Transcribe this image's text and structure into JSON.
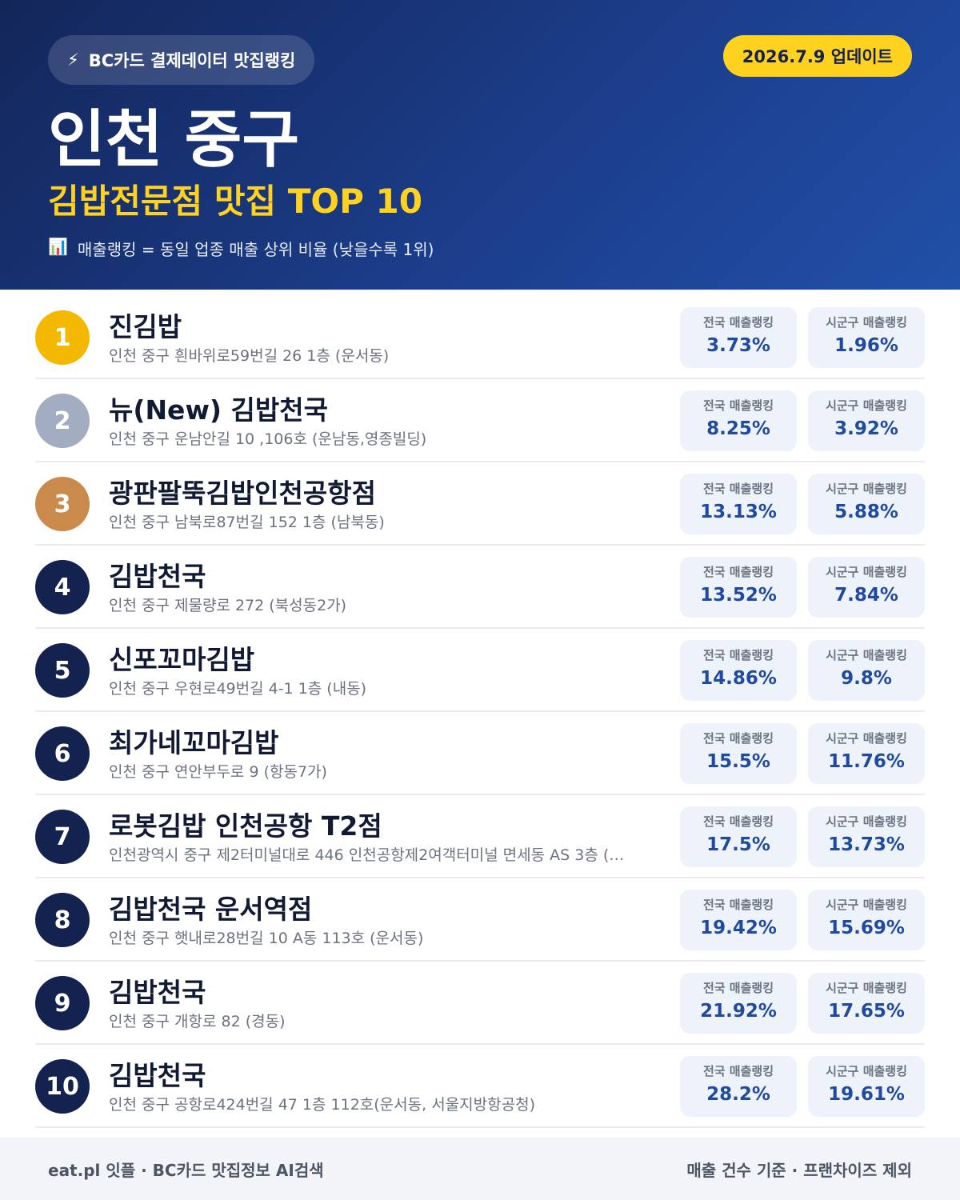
{
  "header": {
    "badge": "BC카드 결제데이터 맛집랭킹",
    "update": "2026.7.9 업데이트",
    "title": "인천 중구",
    "subtitle": "김밥전문점 맛집 TOP 10",
    "note": "매출랭킹 = 동일 업종 매출 상위 비율 (낮을수록 1위)"
  },
  "metric_labels": [
    "전국 매출랭킹",
    "시군구 매출랭킹"
  ],
  "items": [
    {
      "rank": 1,
      "name": "진김밥",
      "address": "인천 중구 흰바위로59번길 26 1층 (운서동)",
      "national": "3.73%",
      "local": "1.96%"
    },
    {
      "rank": 2,
      "name": "뉴(New) 김밥천국",
      "address": "인천 중구 운남안길 10 ,106호 (운남동,영종빌딩)",
      "national": "8.25%",
      "local": "3.92%"
    },
    {
      "rank": 3,
      "name": "광판팔뚝김밥인천공항점",
      "address": "인천 중구 남북로87번길 152 1층 (남북동)",
      "national": "13.13%",
      "local": "5.88%"
    },
    {
      "rank": 4,
      "name": "김밥천국",
      "address": "인천 중구 제물량로 272 (북성동2가)",
      "national": "13.52%",
      "local": "7.84%"
    },
    {
      "rank": 5,
      "name": "신포꼬마김밥",
      "address": "인천 중구 우현로49번길 4-1 1층 (내동)",
      "national": "14.86%",
      "local": "9.8%"
    },
    {
      "rank": 6,
      "name": "최가네꼬마김밥",
      "address": "인천 중구 연안부두로 9 (항동7가)",
      "national": "15.5%",
      "local": "11.76%"
    },
    {
      "rank": 7,
      "name": "로봇김밥 인천공항 T2점",
      "address": "인천광역시 중구 제2터미널대로 446 인천공항제2여객터미널 면세동 AS 3층 (…",
      "national": "17.5%",
      "local": "13.73%"
    },
    {
      "rank": 8,
      "name": "김밥천국 운서역점",
      "address": "인천 중구 햇내로28번길 10 A동 113호 (운서동)",
      "national": "19.42%",
      "local": "15.69%"
    },
    {
      "rank": 9,
      "name": "김밥천국",
      "address": "인천 중구 개항로 82 (경동)",
      "national": "21.92%",
      "local": "17.65%"
    },
    {
      "rank": 10,
      "name": "김밥천국",
      "address": "인천 중구 공항로424번길 47 1층 112호(운서동, 서울지방항공청)",
      "national": "28.2%",
      "local": "19.61%"
    }
  ],
  "footer": {
    "left": "eat.pl 잇플 · BC카드 맛집정보 AI검색",
    "right": "매출 건수 기준 · 프랜차이즈 제외"
  }
}
